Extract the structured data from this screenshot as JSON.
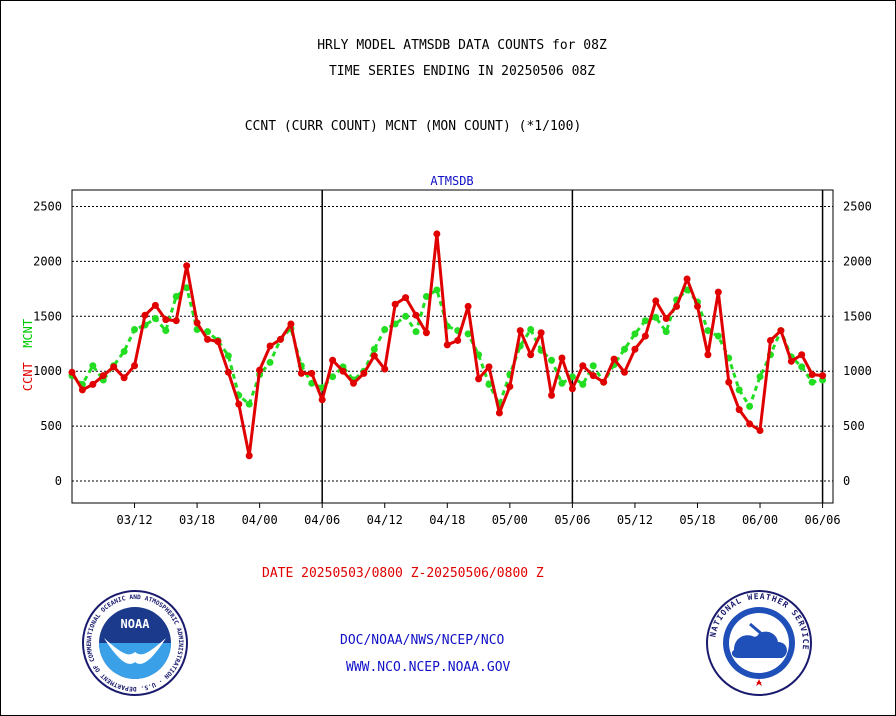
{
  "header": {
    "title_line1": "HRLY MODEL ATMSDB DATA COUNTS for 08Z",
    "title_line2": "TIME SERIES ENDING IN 20250506 08Z",
    "subtitle": "CCNT (CURR COUNT) MCNT (MON COUNT) (*1/100)"
  },
  "footer": {
    "date_range": "DATE 20250503/0800 Z-20250506/0800 Z",
    "link1": "DOC/NOAA/NWS/NCEP/NCO",
    "link2": "WWW.NCO.NCEP.NOAA.GOV"
  },
  "logos": {
    "noaa_text": "NOAA",
    "noaa_ring": "NATIONAL OCEANIC AND ATMOSPHERIC ADMINISTRATION · U.S. DEPARTMENT OF COMMERCE",
    "nws_ring": "NATIONAL WEATHER SERVICE"
  },
  "colors": {
    "ccnt": "#e00000",
    "mcnt": "#22dd22",
    "panel_label": "#1010c8"
  },
  "chart_data": {
    "type": "line",
    "panel_label": "ATMSDB",
    "ylabel_ccnt": "CCNT",
    "ylabel_mcnt": "MCNT",
    "ylim": [
      -200,
      2650
    ],
    "yticks": [
      0,
      500,
      1000,
      1500,
      2000,
      2500
    ],
    "grid": true,
    "x_tick_labels": [
      "03/12",
      "03/18",
      "04/00",
      "04/06",
      "04/12",
      "04/18",
      "05/00",
      "05/06",
      "05/12",
      "05/18",
      "06/00",
      "06/06"
    ],
    "x_tick_index": [
      6,
      12,
      18,
      24,
      30,
      36,
      42,
      48,
      54,
      60,
      66,
      72
    ],
    "day_boundary_index": [
      24,
      48,
      72
    ],
    "x_range_index": [
      0,
      73
    ],
    "series": [
      {
        "name": "CCNT",
        "values": [
          990,
          830,
          880,
          960,
          1040,
          940,
          1050,
          1510,
          1600,
          1470,
          1460,
          1960,
          1440,
          1290,
          1270,
          990,
          700,
          230,
          1010,
          1230,
          1290,
          1430,
          980,
          980,
          740,
          1100,
          1000,
          890,
          980,
          1140,
          1020,
          1610,
          1670,
          1510,
          1350,
          2250,
          1240,
          1280,
          1590,
          930,
          1040,
          620,
          860,
          1370,
          1150,
          1350,
          780,
          1120,
          840,
          1050,
          960,
          900,
          1110,
          990,
          1200,
          1320,
          1640,
          1480,
          1590,
          1840,
          1590,
          1150,
          1720,
          900,
          650,
          520,
          460,
          1280,
          1370,
          1090,
          1150,
          970,
          960
        ]
      },
      {
        "name": "MCNT",
        "values": [
          960,
          880,
          1050,
          920,
          1050,
          1180,
          1380,
          1420,
          1480,
          1370,
          1680,
          1760,
          1380,
          1360,
          1280,
          1140,
          780,
          700,
          970,
          1080,
          1290,
          1390,
          1050,
          890,
          850,
          950,
          1040,
          920,
          1000,
          1200,
          1380,
          1430,
          1500,
          1360,
          1680,
          1740,
          1410,
          1370,
          1340,
          1150,
          880,
          700,
          970,
          1230,
          1380,
          1190,
          1100,
          890,
          950,
          880,
          1050,
          900,
          1060,
          1200,
          1340,
          1460,
          1490,
          1360,
          1650,
          1740,
          1630,
          1370,
          1320,
          1120,
          830,
          680,
          950,
          1150,
          1370,
          1130,
          1040,
          900,
          920
        ]
      }
    ]
  }
}
